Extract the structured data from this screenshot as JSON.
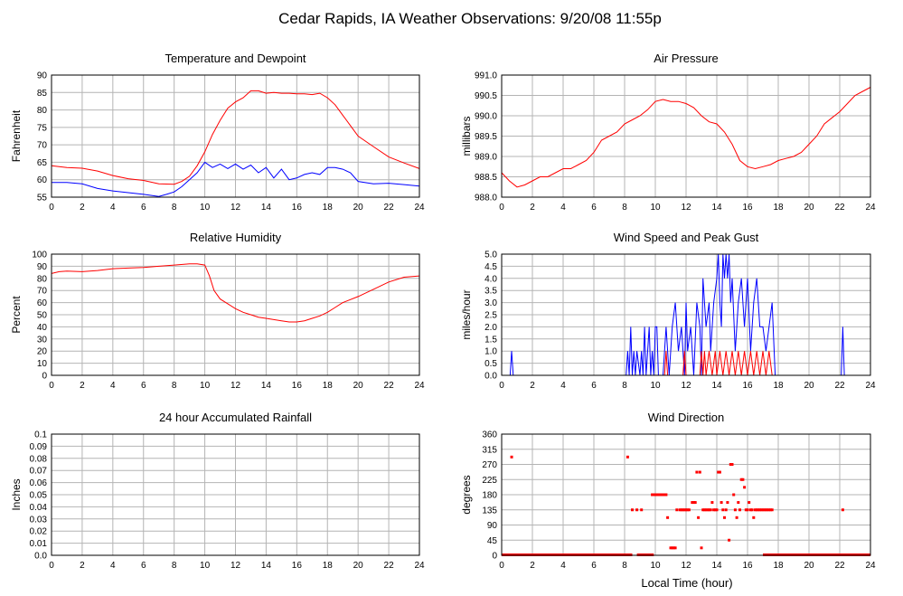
{
  "figure": {
    "title": "Cedar Rapids, IA Weather Observations: 9/20/08 11:55p",
    "xlabel": "Local Time (hour)",
    "colors": {
      "primary": "#ff0000",
      "secondary": "#0000ff",
      "grid": "#b4b4b4"
    }
  },
  "chart_data": [
    {
      "id": "temp",
      "type": "line",
      "title": "Temperature and Dewpoint",
      "ylabel": "Fahrenheit",
      "xlim": [
        0,
        24
      ],
      "ylim": [
        55,
        90
      ],
      "xticks": [
        0,
        2,
        4,
        6,
        8,
        10,
        12,
        14,
        16,
        18,
        20,
        22,
        24
      ],
      "yticks": [
        55,
        60,
        65,
        70,
        75,
        80,
        85,
        90
      ],
      "ytick_labels": [
        "55",
        "60",
        "65",
        "70",
        "75",
        "80",
        "85",
        "90"
      ],
      "grid": true,
      "series": [
        {
          "color": "#ff0000",
          "x": [
            0,
            1,
            2,
            3,
            4,
            5,
            6,
            7,
            8,
            8.5,
            9,
            9.5,
            10,
            10.5,
            11,
            11.5,
            12,
            12.5,
            13,
            13.5,
            14,
            14.5,
            15,
            15.5,
            16,
            16.5,
            17,
            17.5,
            18,
            18.5,
            19,
            19.5,
            20,
            21,
            22,
            23,
            24
          ],
          "y": [
            64,
            63.5,
            63.3,
            62.5,
            61.2,
            60.3,
            59.8,
            58.8,
            58.7,
            59.5,
            61,
            64,
            68,
            73,
            77,
            80.5,
            82.3,
            83.5,
            85.5,
            85.5,
            84.8,
            85,
            84.8,
            84.8,
            84.6,
            84.6,
            84.4,
            84.8,
            83.5,
            81.5,
            78.5,
            75.5,
            72.5,
            69.5,
            66.5,
            64.8,
            63.2
          ]
        },
        {
          "color": "#0000ff",
          "x": [
            0,
            1,
            2,
            3,
            4,
            5,
            6,
            7,
            7.5,
            8,
            8.5,
            9,
            9.5,
            10,
            10.5,
            11,
            11.5,
            12,
            12.5,
            13,
            13.5,
            14,
            14.5,
            15,
            15.5,
            16,
            16.5,
            17,
            17.5,
            18,
            18.5,
            19,
            19.5,
            20,
            21,
            22,
            23,
            24
          ],
          "y": [
            59.2,
            59.2,
            58.8,
            57.5,
            56.8,
            56.3,
            55.8,
            55.2,
            55.8,
            56.5,
            58,
            60,
            62,
            65,
            63.5,
            64.5,
            63.2,
            64.5,
            63,
            64.2,
            62,
            63.5,
            60.5,
            63,
            60,
            60.5,
            61.5,
            62,
            61.5,
            63.5,
            63.5,
            63,
            62,
            59.5,
            58.8,
            59,
            58.6,
            58.2
          ]
        }
      ]
    },
    {
      "id": "pressure",
      "type": "line",
      "title": "Air Pressure",
      "ylabel": "millibars",
      "xlim": [
        0,
        24
      ],
      "ylim": [
        988.0,
        991.0
      ],
      "xticks": [
        0,
        2,
        4,
        6,
        8,
        10,
        12,
        14,
        16,
        18,
        20,
        22,
        24
      ],
      "yticks": [
        988.0,
        988.5,
        989.0,
        989.5,
        990.0,
        990.5,
        991.0
      ],
      "ytick_labels": [
        "988.0",
        "988.5",
        "989.0",
        "989.5",
        "990.0",
        "990.5",
        "991.0"
      ],
      "grid": true,
      "series": [
        {
          "color": "#ff0000",
          "x": [
            0,
            0.5,
            1,
            1.5,
            2,
            2.5,
            3,
            3.5,
            4,
            4.5,
            5,
            5.5,
            6,
            6.5,
            7,
            7.5,
            8,
            8.5,
            9,
            9.5,
            10,
            10.5,
            11,
            11.5,
            12,
            12.5,
            13,
            13.5,
            14,
            14.5,
            15,
            15.5,
            16,
            16.5,
            17,
            17.5,
            18,
            18.5,
            19,
            19.5,
            20,
            20.5,
            21,
            21.5,
            22,
            22.5,
            23,
            23.5,
            24
          ],
          "y": [
            988.6,
            988.4,
            988.25,
            988.3,
            988.4,
            988.5,
            988.5,
            988.6,
            988.7,
            988.7,
            988.8,
            988.9,
            989.1,
            989.4,
            989.5,
            989.6,
            989.8,
            989.9,
            990.0,
            990.15,
            990.35,
            990.4,
            990.35,
            990.35,
            990.3,
            990.2,
            990.0,
            989.85,
            989.8,
            989.6,
            989.3,
            988.9,
            988.75,
            988.7,
            988.75,
            988.8,
            988.9,
            988.95,
            989.0,
            989.1,
            989.3,
            989.5,
            989.8,
            989.95,
            990.1,
            990.3,
            990.5,
            990.6,
            990.7
          ]
        }
      ]
    },
    {
      "id": "humidity",
      "type": "line",
      "title": "Relative Humidity",
      "ylabel": "Percent",
      "xlim": [
        0,
        24
      ],
      "ylim": [
        0,
        100
      ],
      "xticks": [
        0,
        2,
        4,
        6,
        8,
        10,
        12,
        14,
        16,
        18,
        20,
        22,
        24
      ],
      "yticks": [
        0,
        10,
        20,
        30,
        40,
        50,
        60,
        70,
        80,
        90,
        100
      ],
      "ytick_labels": [
        "0",
        "10",
        "20",
        "30",
        "40",
        "50",
        "60",
        "70",
        "80",
        "90",
        "100"
      ],
      "grid": true,
      "series": [
        {
          "color": "#ff0000",
          "x": [
            0,
            0.5,
            1,
            2,
            3,
            4,
            5,
            6,
            7,
            8,
            9,
            9.5,
            10,
            10.3,
            10.6,
            11,
            11.5,
            12,
            12.5,
            13,
            13.5,
            14,
            14.5,
            15,
            15.5,
            16,
            16.5,
            17,
            17.5,
            18,
            18.5,
            19,
            20,
            21,
            22,
            23,
            24
          ],
          "y": [
            84,
            85.5,
            86,
            85.5,
            86.5,
            88,
            88.5,
            89,
            90,
            91,
            92,
            92,
            91,
            82,
            70,
            63,
            59,
            55,
            52,
            50,
            48,
            47,
            46,
            45,
            44,
            44,
            45,
            47,
            49,
            52,
            56,
            60,
            65,
            71,
            77,
            81,
            82
          ]
        }
      ]
    },
    {
      "id": "wind",
      "type": "line",
      "title": "Wind Speed and Peak Gust",
      "ylabel": "miles/hour",
      "xlim": [
        0,
        24
      ],
      "ylim": [
        0,
        5
      ],
      "xticks": [
        0,
        2,
        4,
        6,
        8,
        10,
        12,
        14,
        16,
        18,
        20,
        22,
        24
      ],
      "yticks": [
        0,
        0.5,
        1,
        1.5,
        2,
        2.5,
        3,
        3.5,
        4,
        4.5,
        5
      ],
      "ytick_labels": [
        "0.0",
        "0.5",
        "1.0",
        "1.5",
        "2.0",
        "2.5",
        "3.0",
        "3.5",
        "4.0",
        "4.5",
        "5.0"
      ],
      "grid": true,
      "series": [
        {
          "color": "#0000ff",
          "x": [
            0,
            0.55,
            0.65,
            0.75,
            8.1,
            8.2,
            8.3,
            8.4,
            8.5,
            8.6,
            8.7,
            8.8,
            9,
            9.1,
            9.2,
            9.3,
            9.4,
            9.5,
            9.6,
            9.7,
            9.8,
            9.9,
            10,
            10.1,
            10.2,
            10.3,
            10.5,
            10.7,
            10.9,
            11,
            11.1,
            11.3,
            11.5,
            11.7,
            11.9,
            12,
            12.1,
            12.3,
            12.5,
            12.7,
            12.9,
            13,
            13.1,
            13.3,
            13.5,
            13.6,
            13.8,
            14,
            14.1,
            14.2,
            14.3,
            14.4,
            14.5,
            14.6,
            14.7,
            14.8,
            14.9,
            15,
            15.2,
            15.4,
            15.6,
            15.8,
            16,
            16.2,
            16.4,
            16.6,
            16.8,
            17,
            17.2,
            17.4,
            17.6,
            17.8,
            18,
            22.1,
            22.2,
            22.3,
            24
          ],
          "y": [
            0,
            0,
            1,
            0,
            0,
            1,
            0,
            2,
            0,
            1,
            0,
            1,
            0,
            1,
            0,
            2,
            0,
            1,
            2,
            0,
            1,
            0,
            2,
            2,
            0,
            0,
            0,
            2,
            0,
            1,
            2,
            3,
            1,
            2,
            0,
            3,
            1,
            2,
            0,
            3,
            2,
            0,
            4,
            2,
            3,
            1,
            3,
            4,
            5,
            3,
            2,
            5,
            4,
            5,
            4,
            5,
            3,
            4,
            1,
            3,
            4,
            2,
            4,
            1,
            3,
            4,
            2,
            2,
            1,
            2,
            3,
            0,
            0,
            0,
            2,
            0,
            0
          ]
        },
        {
          "color": "#ff0000",
          "x": [
            0,
            10.6,
            10.7,
            10.8,
            11.8,
            11.9,
            12,
            12.9,
            13,
            13.1,
            13.2,
            13.3,
            13.5,
            13.7,
            13.9,
            14,
            14.2,
            14.4,
            14.6,
            14.8,
            15,
            15.2,
            15.4,
            15.6,
            15.8,
            16,
            16.2,
            16.4,
            16.6,
            16.8,
            17,
            17.2,
            17.4,
            17.6,
            24
          ],
          "y": [
            0,
            0,
            1,
            0,
            0,
            1,
            0,
            0,
            1,
            0,
            1,
            0,
            1,
            0,
            1,
            0,
            1,
            0,
            1,
            0,
            1,
            0,
            1,
            0,
            1,
            0,
            1,
            0,
            1,
            0,
            1,
            0,
            1,
            0,
            0
          ]
        }
      ]
    },
    {
      "id": "rain",
      "type": "line",
      "title": "24 hour Accumulated Rainfall",
      "ylabel": "Inches",
      "xlim": [
        0,
        24
      ],
      "ylim": [
        0,
        0.1
      ],
      "xticks": [
        0,
        2,
        4,
        6,
        8,
        10,
        12,
        14,
        16,
        18,
        20,
        22,
        24
      ],
      "yticks": [
        0,
        0.01,
        0.02,
        0.03,
        0.04,
        0.05,
        0.06,
        0.07,
        0.08,
        0.09,
        0.1
      ],
      "ytick_labels": [
        "0.0",
        "0.01",
        "0.02",
        "0.03",
        "0.04",
        "0.05",
        "0.06",
        "0.07",
        "0.08",
        "0.09",
        "0.1"
      ],
      "grid": true,
      "series": [
        {
          "color": "#ff0000",
          "x": [
            0,
            24
          ],
          "y": [
            0,
            0
          ]
        }
      ]
    },
    {
      "id": "direction",
      "type": "scatter",
      "title": "Wind Direction",
      "ylabel": "degrees",
      "xlim": [
        0,
        24
      ],
      "ylim": [
        0,
        360
      ],
      "xticks": [
        0,
        2,
        4,
        6,
        8,
        10,
        12,
        14,
        16,
        18,
        20,
        22,
        24
      ],
      "yticks": [
        0,
        45,
        90,
        135,
        180,
        225,
        270,
        315,
        360
      ],
      "ytick_labels": [
        "0",
        "45",
        "90",
        "135",
        "180",
        "225",
        "270",
        "315",
        "360"
      ],
      "grid": true,
      "zero_band": {
        "color": "#ff0000",
        "y": 0,
        "segments": [
          [
            0,
            8.5
          ],
          [
            8.8,
            9.9
          ],
          [
            17,
            24
          ]
        ]
      },
      "series": [
        {
          "color": "#ff0000",
          "x": [
            0.65,
            8.2,
            8.5,
            8.8,
            9.1,
            9.8,
            9.9,
            10,
            10.1,
            10.2,
            10.3,
            10.4,
            10.5,
            10.6,
            10.7,
            10.8,
            11,
            11.1,
            11.2,
            11.3,
            11.4,
            11.6,
            11.7,
            11.8,
            11.9,
            12,
            12.1,
            12.2,
            12.4,
            12.5,
            12.6,
            12.7,
            12.8,
            12.9,
            13,
            13.1,
            13.2,
            13.3,
            13.4,
            13.5,
            13.6,
            13.7,
            13.8,
            13.9,
            14,
            14.1,
            14.2,
            14.3,
            14.4,
            14.5,
            14.6,
            14.7,
            14.8,
            14.9,
            15,
            15.1,
            15.2,
            15.3,
            15.4,
            15.5,
            15.6,
            15.7,
            15.8,
            15.9,
            16,
            16.1,
            16.2,
            16.3,
            16.4,
            16.5,
            16.6,
            16.7,
            16.8,
            16.9,
            17,
            17.1,
            17.2,
            17.3,
            17.4,
            17.5,
            17.6,
            22.2
          ],
          "y": [
            292,
            292,
            135,
            135,
            135,
            180,
            180,
            180,
            180,
            180,
            180,
            180,
            180,
            180,
            180,
            112,
            22,
            22,
            22,
            22,
            135,
            135,
            135,
            135,
            135,
            135,
            135,
            135,
            157,
            157,
            157,
            247,
            112,
            247,
            22,
            135,
            135,
            135,
            135,
            135,
            135,
            157,
            135,
            135,
            135,
            247,
            247,
            157,
            135,
            112,
            135,
            157,
            45,
            270,
            270,
            180,
            135,
            112,
            157,
            135,
            225,
            225,
            202,
            135,
            135,
            157,
            135,
            135,
            112,
            135,
            135,
            135,
            135,
            135,
            135,
            135,
            135,
            135,
            135,
            135,
            135,
            135
          ]
        }
      ]
    }
  ]
}
